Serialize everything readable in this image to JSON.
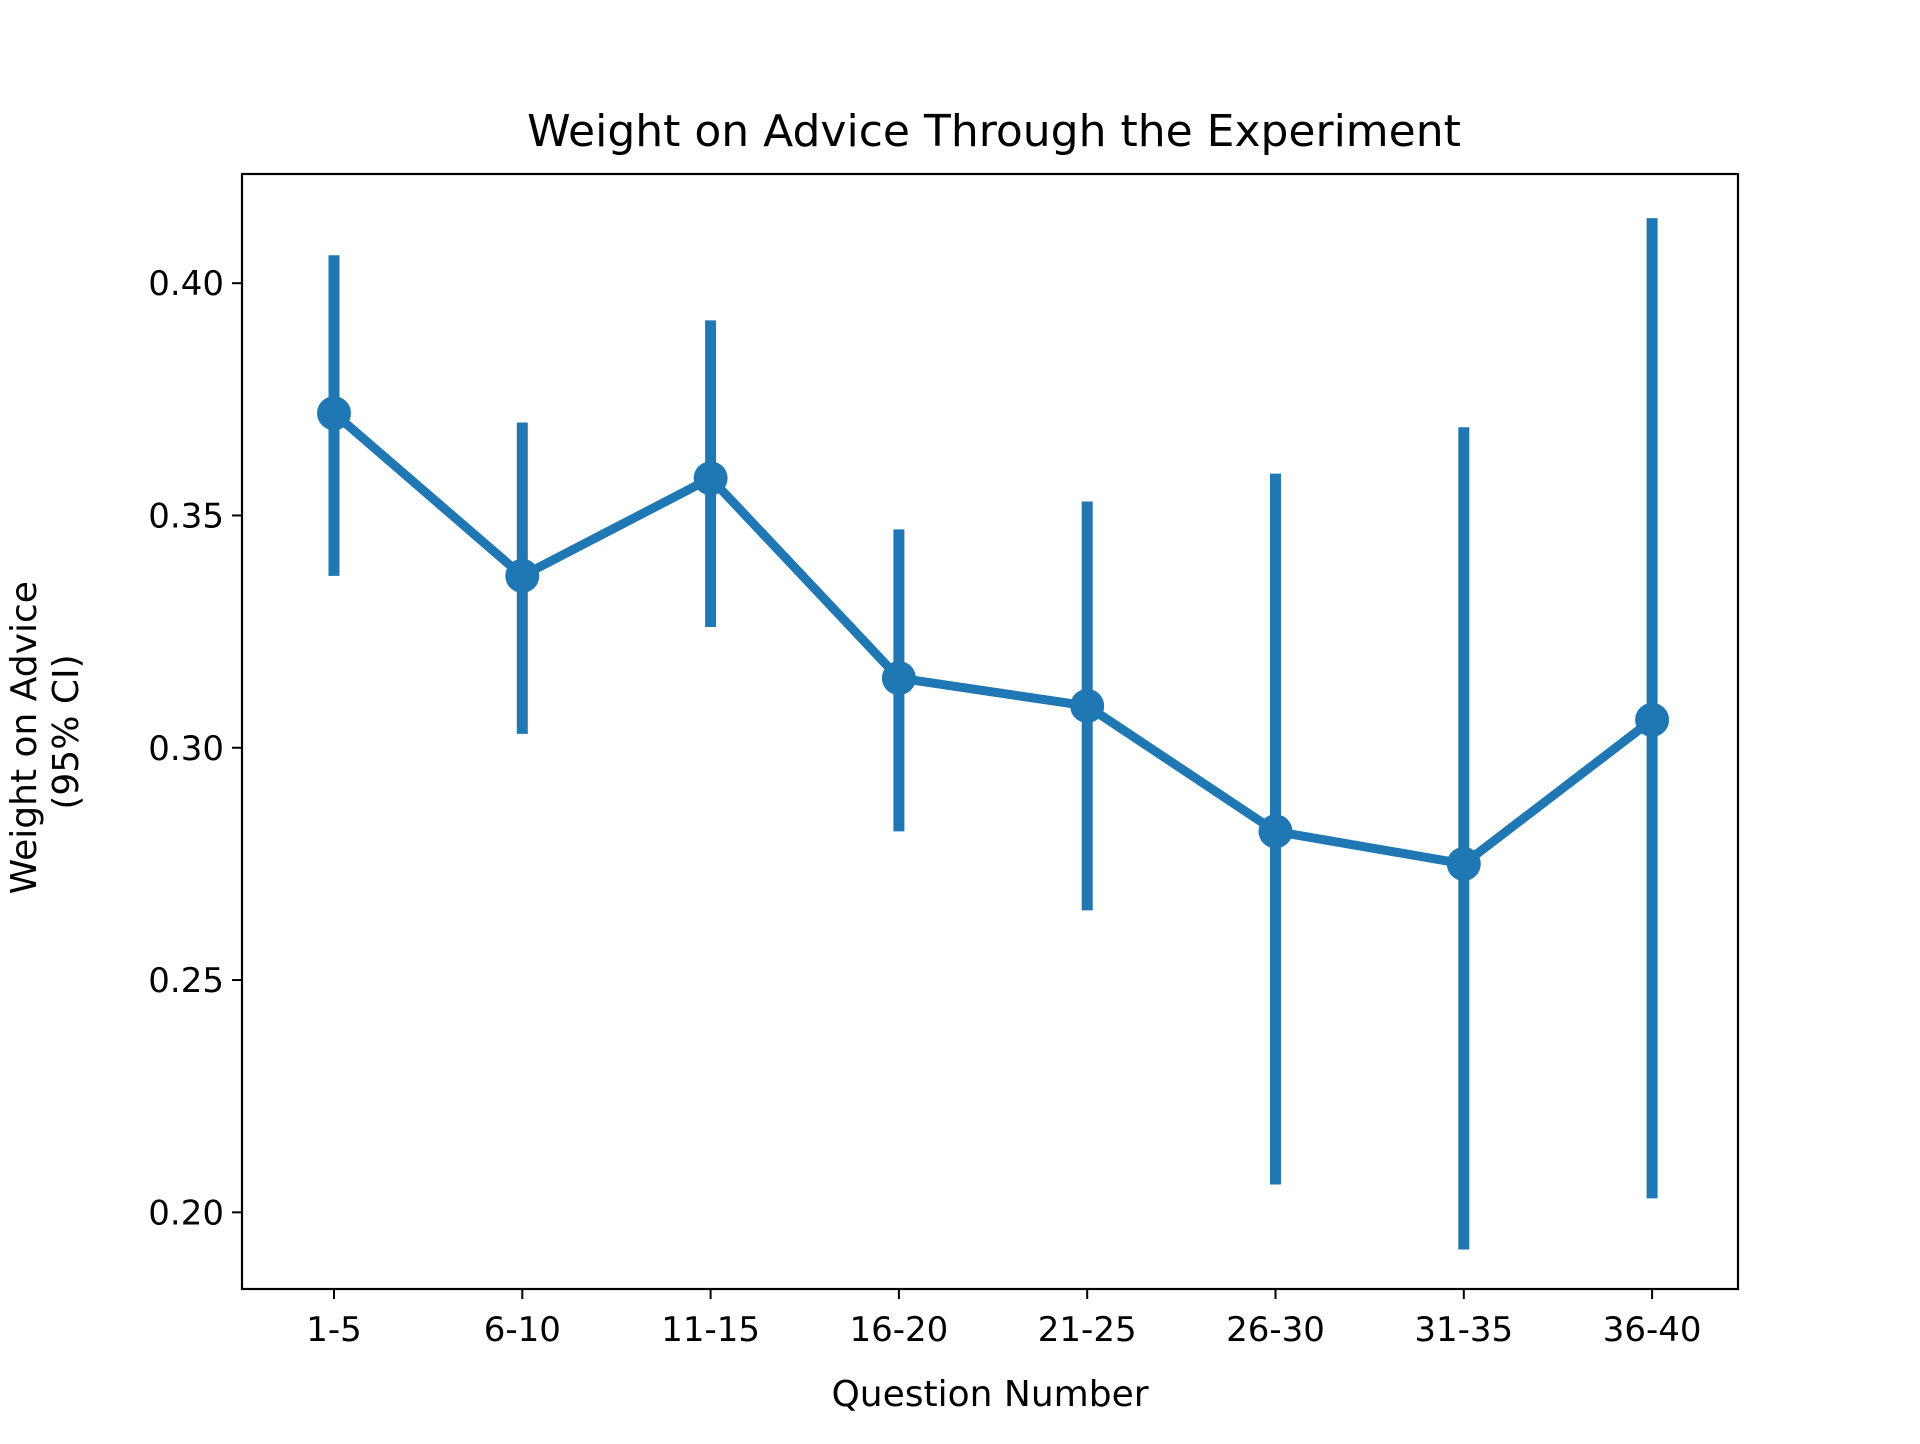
{
  "chart_data": {
    "type": "line",
    "title": "Weight on Advice Through the Experiment",
    "xlabel": "Question Number",
    "ylabel_lines": [
      "Weight on Advice",
      "(95% CI)"
    ],
    "categories": [
      "1-5",
      "6-10",
      "11-15",
      "16-20",
      "21-25",
      "26-30",
      "31-35",
      "36-40"
    ],
    "series": [
      {
        "values": [
          0.372,
          0.337,
          0.358,
          0.315,
          0.309,
          0.282,
          0.275,
          0.306
        ],
        "ci_low": [
          0.337,
          0.303,
          0.326,
          0.282,
          0.265,
          0.206,
          0.192,
          0.203
        ],
        "ci_high": [
          0.406,
          0.37,
          0.392,
          0.347,
          0.353,
          0.359,
          0.369,
          0.414
        ]
      }
    ],
    "ylim": [
      0.1835,
      0.4235
    ],
    "yticks": [
      0.2,
      0.25,
      0.3,
      0.35,
      0.4
    ],
    "ytick_labels": [
      "0.20",
      "0.25",
      "0.30",
      "0.35",
      "0.40"
    ],
    "grid": false,
    "color": "#1f77b4"
  }
}
